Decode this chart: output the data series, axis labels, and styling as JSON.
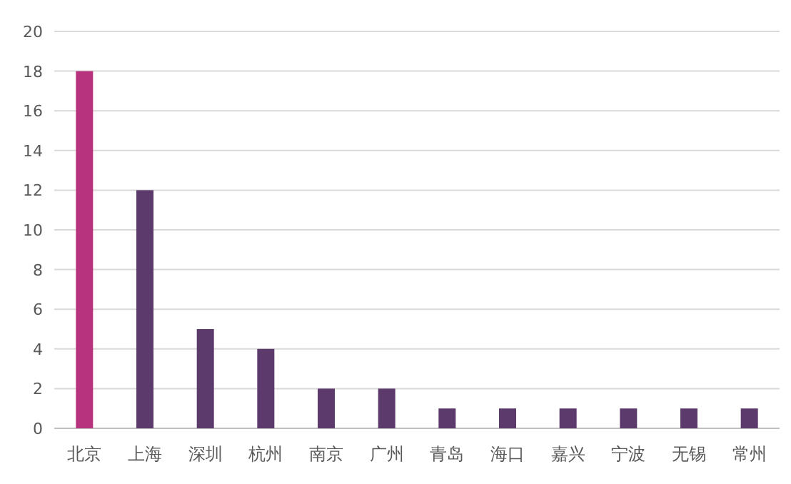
{
  "chart_data": {
    "type": "bar",
    "categories": [
      "北京",
      "上海",
      "深圳",
      "杭州",
      "南京",
      "广州",
      "青岛",
      "海口",
      "嘉兴",
      "宁波",
      "无锡",
      "常州"
    ],
    "values": [
      18,
      12,
      5,
      4,
      2,
      2,
      1,
      1,
      1,
      1,
      1,
      1
    ],
    "colors": [
      "#b8337e",
      "#5c3a6c",
      "#5c3a6c",
      "#5c3a6c",
      "#5c3a6c",
      "#5c3a6c",
      "#5c3a6c",
      "#5c3a6c",
      "#5c3a6c",
      "#5c3a6c",
      "#5c3a6c",
      "#5c3a6c"
    ],
    "ylim": [
      0,
      20
    ],
    "yticks": [
      0,
      2,
      4,
      6,
      8,
      10,
      12,
      14,
      16,
      18,
      20
    ],
    "grid": "y"
  }
}
